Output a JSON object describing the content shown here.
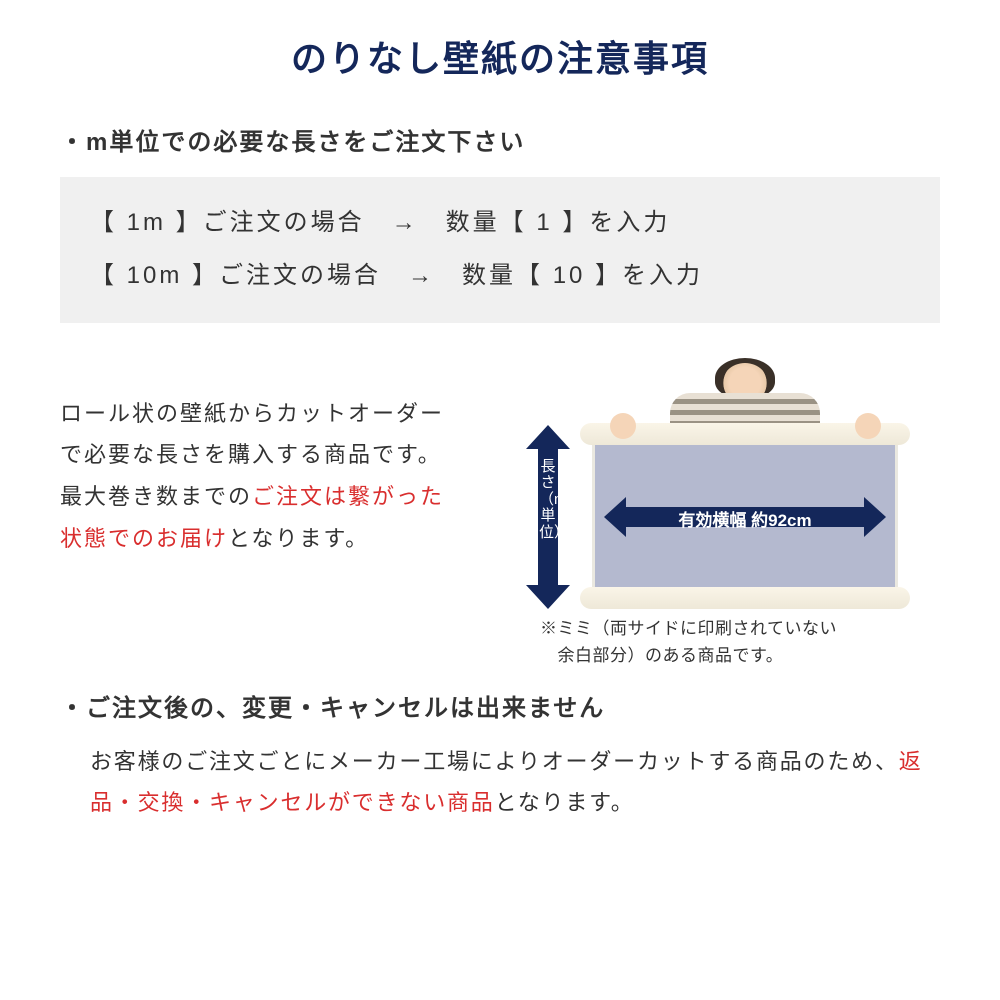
{
  "colors": {
    "title": "#14275a",
    "body": "#333333",
    "highlight": "#d92e2e",
    "box_bg": "#f0f0f0",
    "arrow": "#14275a",
    "arrow_text": "#ffffff",
    "panel_fill": "#b4b9cf",
    "roll": "#f5f0e0"
  },
  "title": "のりなし壁紙の注意事項",
  "section1": {
    "heading": "・m単位での必要な長さをご注文下さい",
    "example_lines": [
      "【 1m 】ご注文の場合　→　数量【 1 】を入力",
      "【 10m 】ご注文の場合　→　数量【 10 】を入力"
    ]
  },
  "desc": {
    "line1": "ロール状の壁紙からカットオーダーで必要な長さを購入する商品です。最大巻き数までの",
    "highlight": "ご注文は繋がった状態でのお届け",
    "line3": "となります。"
  },
  "diagram": {
    "vert_label": "長さ（m単位）",
    "horiz_label": "有効横幅 約92cm",
    "note_line1": "※ミミ（両サイドに印刷されていない",
    "note_line2": "　余白部分）のある商品です。"
  },
  "section2": {
    "heading": "・ご注文後の、変更・キャンセルは出来ません",
    "body_pre": "お客様のご注文ごとにメーカー工場によりオーダーカットする商品のため、",
    "body_red": "返品・交換・キャンセルができない商品",
    "body_post": "となります。"
  }
}
